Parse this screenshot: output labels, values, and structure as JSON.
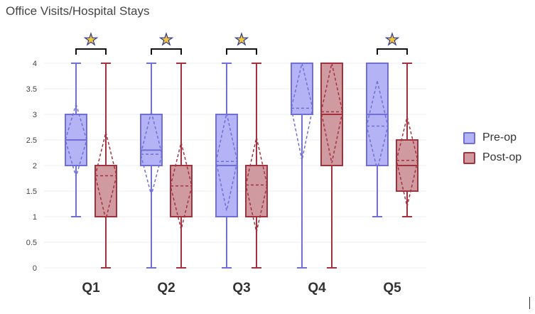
{
  "chart_data": {
    "type": "box",
    "title": "Office Visits/Hospital Stays",
    "categories": [
      "Q1",
      "Q2",
      "Q3",
      "Q4",
      "Q5"
    ],
    "ylim": [
      0,
      4
    ],
    "yticks": [
      0,
      0.5,
      1,
      1.5,
      2,
      2.5,
      3,
      3.5,
      4
    ],
    "ytick_labels": [
      "0",
      "0.5",
      "1",
      "1.5",
      "2",
      "2.5",
      "3",
      "3.5",
      "4"
    ],
    "grid": true,
    "legend_position": "right",
    "significance_marker": "★",
    "significant_categories": [
      "Q1",
      "Q2",
      "Q3",
      "Q5"
    ],
    "series": [
      {
        "name": "Pre-op",
        "color": "#6f6fd6",
        "fill": "#b3b3f5",
        "boxes": [
          {
            "min": 1,
            "q1": 2,
            "median": 2.5,
            "q3": 3,
            "max": 4,
            "mean": 2.5,
            "sd_low": 1.78,
            "sd_high": 3.2
          },
          {
            "min": 0,
            "q1": 2,
            "median": 2.3,
            "q3": 3,
            "max": 4,
            "mean": 2.22,
            "sd_low": 1.42,
            "sd_high": 3.05
          },
          {
            "min": 0,
            "q1": 1,
            "median": 2.0,
            "q3": 3,
            "max": 4,
            "mean": 2.08,
            "sd_low": 1.12,
            "sd_high": 3.02
          },
          {
            "min": 0,
            "q1": 3,
            "median": 4.0,
            "q3": 4,
            "max": 4,
            "mean": 3.12,
            "sd_low": 2.1,
            "sd_high": 4.0
          },
          {
            "min": 1,
            "q1": 2,
            "median": 3.0,
            "q3": 4,
            "max": 4,
            "mean": 2.77,
            "sd_low": 1.92,
            "sd_high": 3.65
          }
        ]
      },
      {
        "name": "Post-op",
        "color": "#a3323f",
        "fill": "#cf9aa0",
        "boxes": [
          {
            "min": 0,
            "q1": 1,
            "median": 2.0,
            "q3": 2,
            "max": 4,
            "mean": 1.8,
            "sd_low": 0.95,
            "sd_high": 2.65
          },
          {
            "min": 0,
            "q1": 1,
            "median": 2.0,
            "q3": 2,
            "max": 4,
            "mean": 1.6,
            "sd_low": 0.75,
            "sd_high": 2.45
          },
          {
            "min": 0,
            "q1": 1,
            "median": 2.0,
            "q3": 2,
            "max": 4,
            "mean": 1.62,
            "sd_low": 0.7,
            "sd_high": 2.55
          },
          {
            "min": 0,
            "q1": 2,
            "median": 3.0,
            "q3": 4,
            "max": 4,
            "mean": 3.05,
            "sd_low": 2.05,
            "sd_high": 4.0
          },
          {
            "min": 1,
            "q1": 1.5,
            "median": 2.0,
            "q3": 2.5,
            "max": 4,
            "mean": 2.1,
            "sd_low": 1.2,
            "sd_high": 2.95
          }
        ]
      }
    ]
  }
}
